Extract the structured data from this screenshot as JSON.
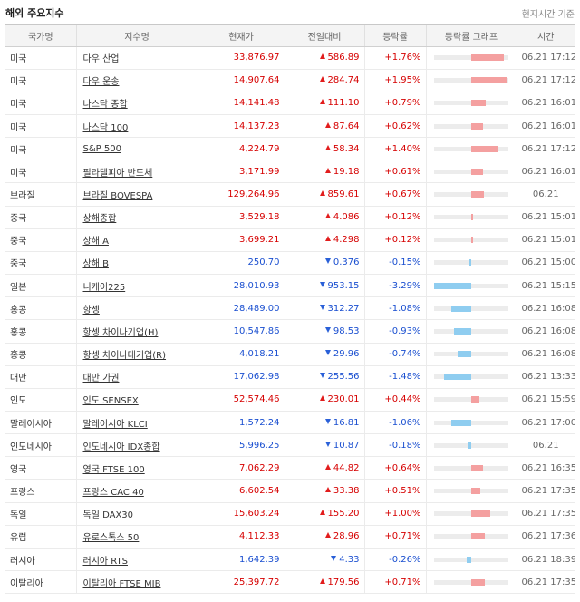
{
  "header": {
    "title": "해외 주요지수",
    "note": "현지시간 기준"
  },
  "columns": [
    "국가명",
    "지수명",
    "현재가",
    "전일대비",
    "등락률",
    "등락률 그래프",
    "시간"
  ],
  "rows": [
    {
      "country": "미국",
      "name": "다우 산업",
      "price": "33,876.97",
      "change": "586.89",
      "dir": "up",
      "rate": "+1.76%",
      "rate_value": 1.76,
      "time": "06.21 17:12"
    },
    {
      "country": "미국",
      "name": "다우 운송",
      "price": "14,907.64",
      "change": "284.74",
      "dir": "up",
      "rate": "+1.95%",
      "rate_value": 1.95,
      "time": "06.21 17:12"
    },
    {
      "country": "미국",
      "name": "나스닥 종합",
      "price": "14,141.48",
      "change": "111.10",
      "dir": "up",
      "rate": "+0.79%",
      "rate_value": 0.79,
      "time": "06.21 16:01"
    },
    {
      "country": "미국",
      "name": "나스닥 100",
      "price": "14,137.23",
      "change": "87.64",
      "dir": "up",
      "rate": "+0.62%",
      "rate_value": 0.62,
      "time": "06.21 16:01"
    },
    {
      "country": "미국",
      "name": "S&P 500",
      "price": "4,224.79",
      "change": "58.34",
      "dir": "up",
      "rate": "+1.40%",
      "rate_value": 1.4,
      "time": "06.21 17:12"
    },
    {
      "country": "미국",
      "name": "필라델피아 반도체",
      "price": "3,171.99",
      "change": "19.18",
      "dir": "up",
      "rate": "+0.61%",
      "rate_value": 0.61,
      "time": "06.21 16:01"
    },
    {
      "country": "브라질",
      "name": "브라질 BOVESPA",
      "price": "129,264.96",
      "change": "859.61",
      "dir": "up",
      "rate": "+0.67%",
      "rate_value": 0.67,
      "time": "06.21"
    },
    {
      "country": "중국",
      "name": "상해종합",
      "price": "3,529.18",
      "change": "4.086",
      "dir": "up",
      "rate": "+0.12%",
      "rate_value": 0.12,
      "time": "06.21 15:01",
      "group_start": true
    },
    {
      "country": "중국",
      "name": "상해 A",
      "price": "3,699.21",
      "change": "4.298",
      "dir": "up",
      "rate": "+0.12%",
      "rate_value": 0.12,
      "time": "06.21 15:01"
    },
    {
      "country": "중국",
      "name": "상해 B",
      "price": "250.70",
      "change": "0.376",
      "dir": "down",
      "rate": "-0.15%",
      "rate_value": -0.15,
      "time": "06.21 15:00"
    },
    {
      "country": "일본",
      "name": "니케이225",
      "price": "28,010.93",
      "change": "953.15",
      "dir": "down",
      "rate": "-3.29%",
      "rate_value": -3.29,
      "time": "06.21 15:15"
    },
    {
      "country": "홍콩",
      "name": "항셍",
      "price": "28,489.00",
      "change": "312.27",
      "dir": "down",
      "rate": "-1.08%",
      "rate_value": -1.08,
      "time": "06.21 16:08"
    },
    {
      "country": "홍콩",
      "name": "항셍 차이나기업(H)",
      "price": "10,547.86",
      "change": "98.53",
      "dir": "down",
      "rate": "-0.93%",
      "rate_value": -0.93,
      "time": "06.21 16:08"
    },
    {
      "country": "홍콩",
      "name": "항셍 차이나대기업(R)",
      "price": "4,018.21",
      "change": "29.96",
      "dir": "down",
      "rate": "-0.74%",
      "rate_value": -0.74,
      "time": "06.21 16:08"
    },
    {
      "country": "대만",
      "name": "대만 가권",
      "price": "17,062.98",
      "change": "255.56",
      "dir": "down",
      "rate": "-1.48%",
      "rate_value": -1.48,
      "time": "06.21 13:33"
    },
    {
      "country": "인도",
      "name": "인도 SENSEX",
      "price": "52,574.46",
      "change": "230.01",
      "dir": "up",
      "rate": "+0.44%",
      "rate_value": 0.44,
      "time": "06.21 15:59"
    },
    {
      "country": "말레이시아",
      "name": "말레이시아 KLCI",
      "price": "1,572.24",
      "change": "16.81",
      "dir": "down",
      "rate": "-1.06%",
      "rate_value": -1.06,
      "time": "06.21 17:00"
    },
    {
      "country": "인도네시아",
      "name": "인도네시아 IDX종합",
      "price": "5,996.25",
      "change": "10.87",
      "dir": "down",
      "rate": "-0.18%",
      "rate_value": -0.18,
      "time": "06.21"
    },
    {
      "country": "영국",
      "name": "영국 FTSE 100",
      "price": "7,062.29",
      "change": "44.82",
      "dir": "up",
      "rate": "+0.64%",
      "rate_value": 0.64,
      "time": "06.21 16:35",
      "group_start": true
    },
    {
      "country": "프랑스",
      "name": "프랑스 CAC 40",
      "price": "6,602.54",
      "change": "33.38",
      "dir": "up",
      "rate": "+0.51%",
      "rate_value": 0.51,
      "time": "06.21 17:35"
    },
    {
      "country": "독일",
      "name": "독일 DAX30",
      "price": "15,603.24",
      "change": "155.20",
      "dir": "up",
      "rate": "+1.00%",
      "rate_value": 1.0,
      "time": "06.21 17:35"
    },
    {
      "country": "유럽",
      "name": "유로스톡스 50",
      "price": "4,112.33",
      "change": "28.96",
      "dir": "up",
      "rate": "+0.71%",
      "rate_value": 0.71,
      "time": "06.21 17:36"
    },
    {
      "country": "러시아",
      "name": "러시아 RTS",
      "price": "1,642.39",
      "change": "4.33",
      "dir": "down",
      "rate": "-0.26%",
      "rate_value": -0.26,
      "time": "06.21 18:39"
    },
    {
      "country": "이탈리아",
      "name": "이탈리아 FTSE MIB",
      "price": "25,397.72",
      "change": "179.56",
      "dir": "up",
      "rate": "+0.71%",
      "rate_value": 0.71,
      "time": "06.21 17:35"
    }
  ]
}
